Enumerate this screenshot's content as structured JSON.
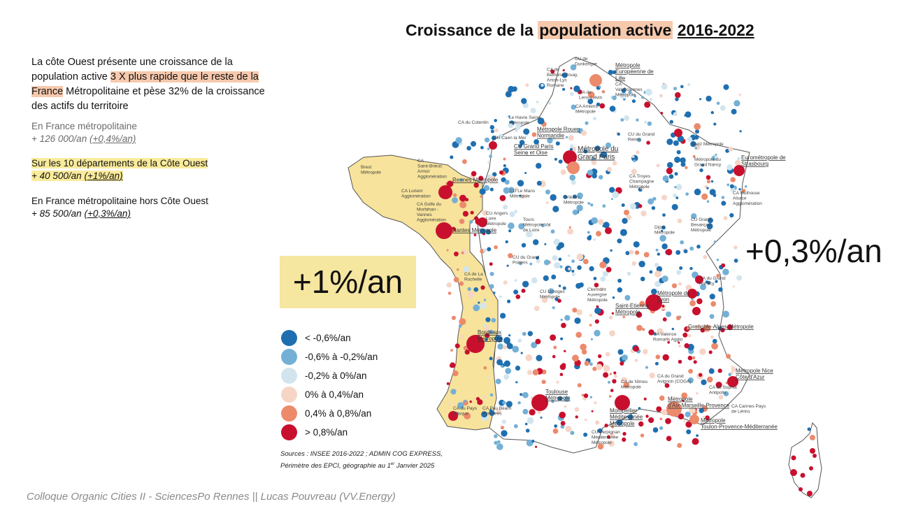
{
  "header": {
    "title_prefix": "Croissance de la ",
    "title_highlight": "population active",
    "title_years": "2016-2022"
  },
  "intro": {
    "part1": "La côte Ouest présente une croissance de la population active ",
    "highlight": "3 X plus rapide que le reste de la France",
    "part2": " Métropolitaine et pèse 32% de la croissance des actifs du territoire"
  },
  "stats": [
    {
      "label": "En France métropolitaine",
      "value": "+ 126 000/an",
      "pct": "(+0,4%/an)"
    },
    {
      "label": "Sur les 10 départements de la Côte Ouest",
      "value": "+ 40 500/an",
      "pct": "(+1%/an)"
    },
    {
      "label": "En France métropolitaine hors Côte Ouest",
      "value": "+ 85 500/an",
      "pct": "(+0,3%/an)"
    }
  ],
  "callouts": {
    "west": "+1%/an",
    "rest": "+0,3%/an"
  },
  "legend": [
    {
      "label": "< -0,6%/an",
      "color": "#1f6fb0"
    },
    {
      "label": "-0,6% à -0,2%/an",
      "color": "#74b0d6"
    },
    {
      "label": "-0,2% à 0%/an",
      "color": "#d2e5ef"
    },
    {
      "label": "0% à 0,4%/an",
      "color": "#f6d5c7"
    },
    {
      "label": "0,4% à 0,8%/an",
      "color": "#ec8a6c"
    },
    {
      "label": "> 0,8%/an",
      "color": "#c8102e"
    }
  ],
  "sources": {
    "line1": "Sources : INSEE 2016-2022 ; ADMIN COG EXPRESS,",
    "line2_pre": "Périmètre des EPCI, géographie au 1",
    "line2_sup": "er",
    "line2_post": " Janvier 2025"
  },
  "footer": "Colloque Organic Cities II - SciencesPo Rennes || Lucas Pouvreau (VV.Energy)",
  "colors": {
    "west_fill": "#f7e39b",
    "title_highlight": "#f6c9ad",
    "callout_bg": "#f5e6a0"
  },
  "map": {
    "major_cities": [
      "Métropole Européenne de Lille",
      "CU Grand Paris Seine et Oise",
      "Métropole du Grand Paris",
      "Métropole Rouen Normandie",
      "Eurométropole de Strasbourg",
      "Rennes Métropole",
      "Nantes Métropole",
      "Bordeaux Métropole",
      "Toulouse Métropole",
      "Montpellier Méditerranée Métropole",
      "Métropole d'Aix-Marseille-Provence",
      "Métropole Toulon-Provence-Méditerranée",
      "Métropole Nice Côte d'Azur",
      "Métropole de Lyon",
      "Saint-Etienne Métropole",
      "Grenoble-Alpes-Métropole"
    ],
    "minor_cities": [
      "CU de Dunkerque",
      "CA de Béthune-Bruay, Artois-Lys Romane",
      "CA Valenciennes Métropole",
      "CA de Lens-Liévin",
      "CA Amiens Métropole",
      "Le Havre Seine Métropole",
      "CA du Cotentin",
      "CU Caen la Mer",
      "CU du Grand Reims",
      "Metz Métropole",
      "Métropole du Grand Nancy",
      "CA Mulhouse Alsace Agglomération",
      "CU Grand Besançon Métropole",
      "Dijon Métropole",
      "CA Troyes Champagne Métropole",
      "Orléans Métropole",
      "CU Le Mans Métropole",
      "CU Angers Loire Métropole",
      "Tours Métropole Val de Loire",
      "CU du Grand Poitiers",
      "CU Limoges Métropole",
      "Clermont Auvergne Métropole",
      "CA Valence Romans Agglo",
      "CA du Grand Annecy",
      "Brest Métropole",
      "CA Saint-Brieuc Armor Agglomération",
      "CA Lorient Agglomération",
      "CA Golfe du Morbihan - Vannes Agglomération",
      "CA de La Rochelle",
      "CA du Pays Basque",
      "CA Pau Béarn Pyrénées",
      "CA de Nîmes Métropole",
      "CA du Grand Avignon (COGA)",
      "CA de Sophia Antipolis",
      "CA Cannes Pays de Lérins",
      "CU Perpignan Méditerranée Métropole"
    ]
  }
}
